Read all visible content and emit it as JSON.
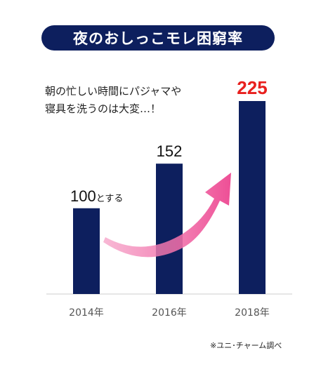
{
  "title": "夜のおしっこモレ困窮率",
  "note_lines": [
    "朝の忙しい時間にパジャマや",
    "寝具を洗うのは大変…！"
  ],
  "source": "※ユニ･チャーム調べ",
  "colors": {
    "bar": "#0d1f5e",
    "highlight": "#e8201e",
    "arrow": "#f0589c",
    "title_bg": "#0d1f5e",
    "axis": "#cccccc",
    "tick": "#555555"
  },
  "chart_data": {
    "type": "bar",
    "categories": [
      "2014年",
      "2016年",
      "2018年"
    ],
    "values": [
      100,
      152,
      225
    ],
    "value_labels": [
      "100",
      "152",
      "225"
    ],
    "value_suffix": [
      "とする",
      "",
      ""
    ],
    "highlight_index": 2,
    "ylim": [
      0,
      225
    ],
    "annotation": "upward-trend-arrow"
  }
}
